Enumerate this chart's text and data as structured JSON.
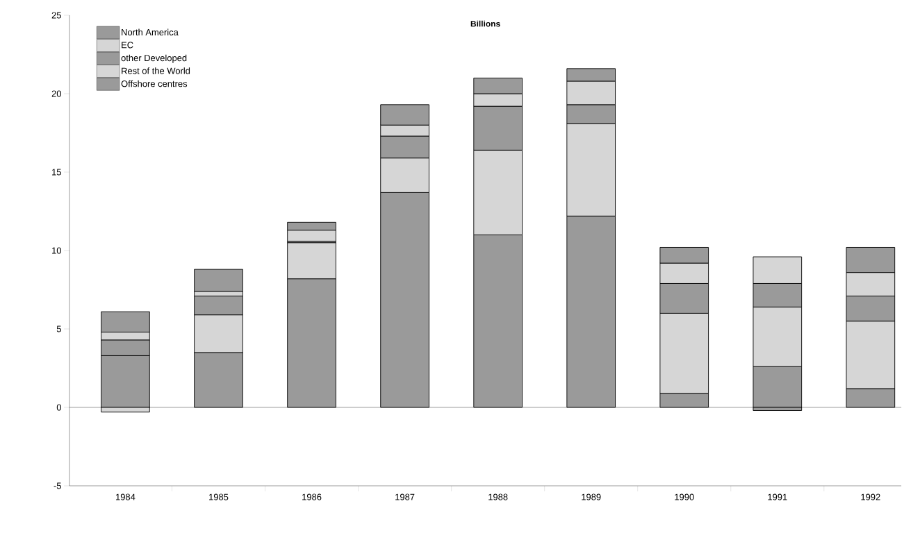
{
  "chart_data": {
    "type": "bar",
    "title": "Billions",
    "stacked": true,
    "categories": [
      "1984",
      "1985",
      "1986",
      "1987",
      "1988",
      "1989",
      "1990",
      "1991",
      "1992"
    ],
    "series": [
      {
        "name": "North America",
        "color": "#9a9a9a",
        "values": [
          3.3,
          3.5,
          8.2,
          13.7,
          11.0,
          12.2,
          0.9,
          2.6,
          1.2
        ]
      },
      {
        "name": "EC",
        "color": "#d6d6d6",
        "values": [
          -0.3,
          2.4,
          2.3,
          2.2,
          5.4,
          5.9,
          5.1,
          3.8,
          4.3
        ]
      },
      {
        "name": "other Developed",
        "color": "#9a9a9a",
        "values": [
          1.0,
          1.2,
          0.1,
          1.4,
          2.8,
          1.2,
          1.9,
          1.5,
          1.6
        ]
      },
      {
        "name": "Rest of the World",
        "color": "#d6d6d6",
        "values": [
          0.5,
          0.3,
          0.7,
          0.7,
          0.8,
          1.5,
          1.3,
          1.7,
          1.5
        ]
      },
      {
        "name": "Offshore centres",
        "color": "#9a9a9a",
        "values": [
          1.3,
          1.4,
          0.5,
          1.3,
          1.0,
          0.8,
          1.0,
          -0.2,
          1.6
        ]
      }
    ],
    "ylim": [
      -5,
      25
    ],
    "yticks": [
      -5,
      0,
      5,
      10,
      15,
      20,
      25
    ],
    "ref_lines": [
      {
        "axis": "y",
        "value": 0,
        "color": "#000000"
      }
    ],
    "legend": "top left"
  }
}
